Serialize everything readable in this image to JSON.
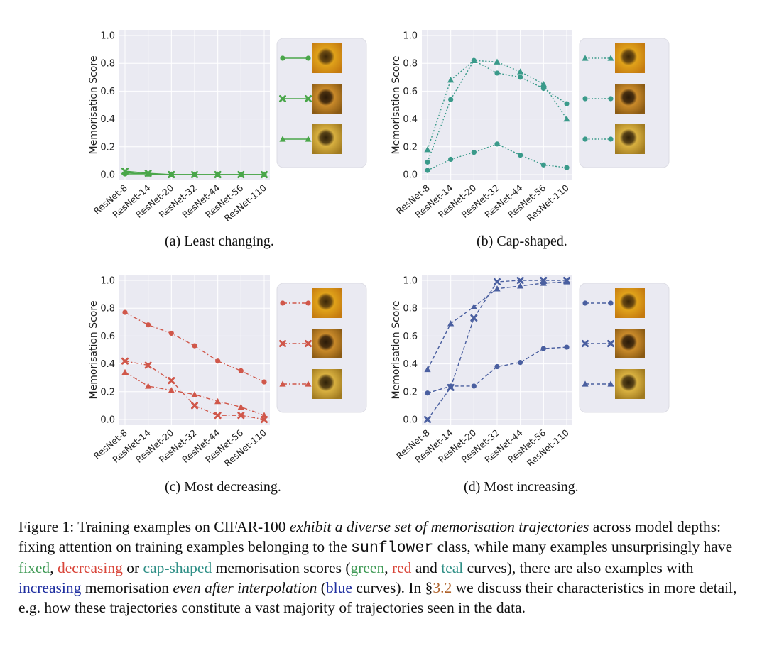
{
  "chart_data": [
    {
      "type": "line",
      "panel": "a",
      "subcaption": "(a) Least changing.",
      "ylabel": "Memorisation Score",
      "ylim": [
        0.0,
        1.0
      ],
      "yticks": [
        "0.0",
        "0.2",
        "0.4",
        "0.6",
        "0.8",
        "1.0"
      ],
      "categories": [
        "ResNet-8",
        "ResNet-14",
        "ResNet-20",
        "ResNet-32",
        "ResNet-44",
        "ResNet-56",
        "ResNet-110"
      ],
      "grid": true,
      "color": "#4aa64a",
      "linestyle": "solid",
      "series": [
        {
          "marker": "circle",
          "values": [
            0.005,
            0.005,
            0.0,
            0.0,
            0.0,
            0.0,
            0.0
          ]
        },
        {
          "marker": "x",
          "values": [
            0.025,
            0.01,
            0.0,
            0.0,
            0.0,
            0.0,
            0.0
          ]
        },
        {
          "marker": "triangle",
          "values": [
            0.015,
            0.005,
            0.0,
            0.0,
            0.0,
            0.0,
            0.0
          ]
        }
      ],
      "legend_images": [
        "sunflower-image-1",
        "sunflower-image-2",
        "sunflower-image-3"
      ]
    },
    {
      "type": "line",
      "panel": "b",
      "subcaption": "(b) Cap-shaped.",
      "ylabel": "Memorisation Score",
      "ylim": [
        0.0,
        1.0
      ],
      "yticks": [
        "0.0",
        "0.2",
        "0.4",
        "0.6",
        "0.8",
        "1.0"
      ],
      "categories": [
        "ResNet-8",
        "ResNet-14",
        "ResNet-20",
        "ResNet-32",
        "ResNet-44",
        "ResNet-56",
        "ResNet-110"
      ],
      "grid": true,
      "color": "#3a9a8a",
      "linestyle": "dotted",
      "series": [
        {
          "marker": "triangle",
          "values": [
            0.18,
            0.68,
            0.82,
            0.81,
            0.74,
            0.65,
            0.4
          ]
        },
        {
          "marker": "circle",
          "values": [
            0.09,
            0.54,
            0.82,
            0.73,
            0.7,
            0.62,
            0.51
          ]
        },
        {
          "marker": "circle",
          "values": [
            0.03,
            0.11,
            0.16,
            0.22,
            0.14,
            0.07,
            0.05
          ]
        }
      ],
      "legend_images": [
        "sunflower-image-1",
        "sunflower-image-2",
        "sunflower-image-3"
      ]
    },
    {
      "type": "line",
      "panel": "c",
      "subcaption": "(c) Most decreasing.",
      "ylabel": "Memorisation Score",
      "ylim": [
        0.0,
        1.0
      ],
      "yticks": [
        "0.0",
        "0.2",
        "0.4",
        "0.6",
        "0.8",
        "1.0"
      ],
      "categories": [
        "ResNet-8",
        "ResNet-14",
        "ResNet-20",
        "ResNet-32",
        "ResNet-44",
        "ResNet-56",
        "ResNet-110"
      ],
      "grid": true,
      "color": "#d0574a",
      "linestyle": "dashdot",
      "series": [
        {
          "marker": "circle",
          "values": [
            0.77,
            0.68,
            0.62,
            0.53,
            0.42,
            0.35,
            0.27
          ]
        },
        {
          "marker": "x",
          "values": [
            0.42,
            0.39,
            0.28,
            0.1,
            0.03,
            0.03,
            0.0
          ]
        },
        {
          "marker": "triangle",
          "values": [
            0.34,
            0.24,
            0.21,
            0.18,
            0.13,
            0.09,
            0.03
          ]
        }
      ],
      "legend_images": [
        "sunflower-image-1",
        "sunflower-image-2",
        "sunflower-image-3"
      ]
    },
    {
      "type": "line",
      "panel": "d",
      "subcaption": "(d) Most increasing.",
      "ylabel": "Memorisation Score",
      "ylim": [
        0.0,
        1.0
      ],
      "yticks": [
        "0.0",
        "0.2",
        "0.4",
        "0.6",
        "0.8",
        "1.0"
      ],
      "categories": [
        "ResNet-8",
        "ResNet-14",
        "ResNet-20",
        "ResNet-32",
        "ResNet-44",
        "ResNet-56",
        "ResNet-110"
      ],
      "grid": true,
      "color": "#4a5fa0",
      "linestyle": "dashed",
      "series": [
        {
          "marker": "circle",
          "values": [
            0.19,
            0.24,
            0.24,
            0.38,
            0.41,
            0.51,
            0.52
          ]
        },
        {
          "marker": "x",
          "values": [
            0.0,
            0.23,
            0.73,
            0.99,
            1.0,
            1.0,
            1.0
          ]
        },
        {
          "marker": "triangle",
          "values": [
            0.36,
            0.69,
            0.81,
            0.94,
            0.96,
            0.98,
            0.99
          ]
        }
      ],
      "legend_images": [
        "sunflower-image-1",
        "sunflower-image-2",
        "sunflower-image-3"
      ]
    }
  ],
  "caption": {
    "p1": "Figure 1: Training examples on CIFAR-100 ",
    "em1": "exhibit a diverse set of memorisation trajectories",
    "p2": " across model depths: fixing attention on training examples belonging to the ",
    "code": "sunflower",
    "p3": " class, while many examples unsurprisingly have ",
    "fixed": "fixed",
    "comma1": ", ",
    "decreasing": "decreasing",
    "or": " or ",
    "capshaped": "cap-shaped",
    "p4": " memorisation scores (",
    "green": "green",
    "comma2": ", ",
    "red": "red",
    "and": " and ",
    "teal": "teal",
    "p5": " curves), there are also examples with ",
    "increasing": "increasing",
    "p6": " memorisation ",
    "em2": "even after interpolation",
    "p7": " (",
    "blue": "blue",
    "p8": " curves). In §",
    "ref": "3.2",
    "p9": " we discuss their characteristics in more detail, e.g. how these trajectories constitute a vast majority of trajectories seen in the data."
  }
}
